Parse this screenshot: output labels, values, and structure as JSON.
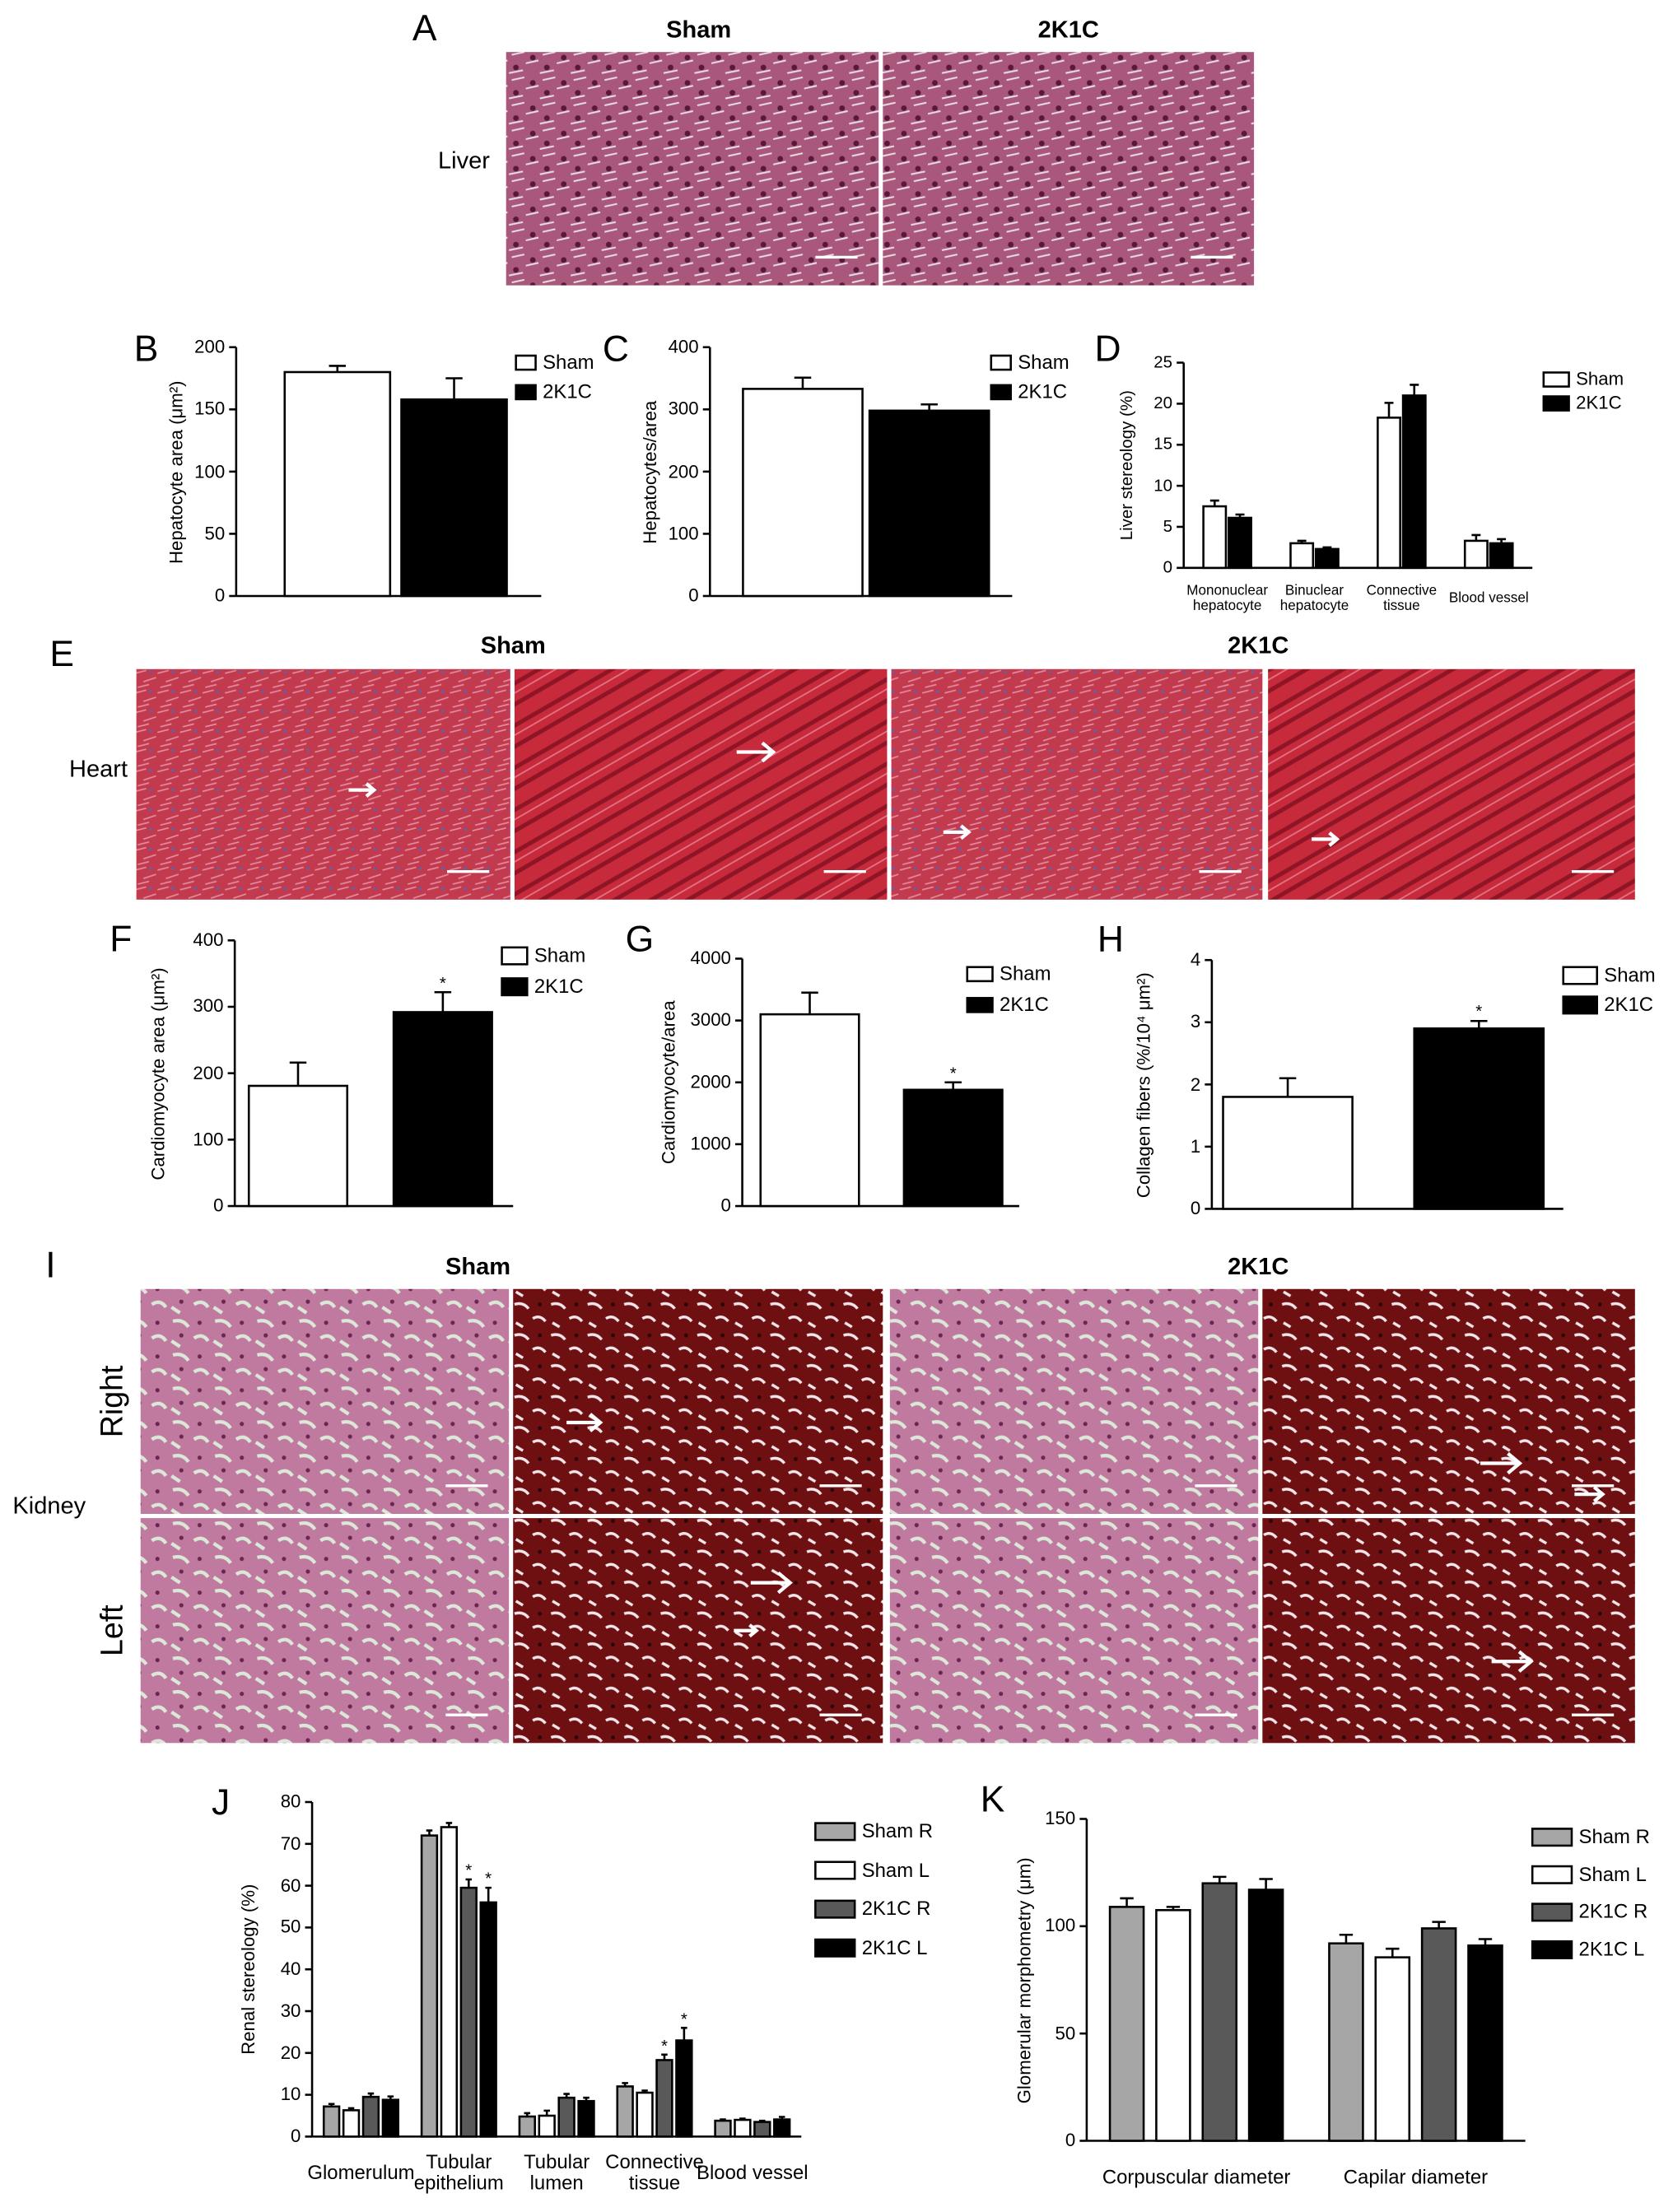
{
  "micrographs": [
    {
      "panel": "A",
      "organ": "Liver",
      "groups": [
        "Sham",
        "2K1C"
      ]
    },
    {
      "panel": "E",
      "organ": "Heart",
      "groups": [
        "Sham",
        "2K1C"
      ]
    },
    {
      "panel": "I",
      "organ": "Kidney",
      "groups": [
        "Sham",
        "2K1C"
      ],
      "rows": [
        "Right",
        "Left"
      ]
    }
  ],
  "chart_data": [
    {
      "type": "bar",
      "panel": "B",
      "y_label": "Hepatocyte area (μm²)",
      "ylim": [
        0,
        200
      ],
      "yticks": [
        0,
        50,
        100,
        150,
        200
      ],
      "series": [
        {
          "name": "Sham",
          "color": "#ffffff",
          "values": [
            180
          ],
          "errors": [
            5
          ]
        },
        {
          "name": "2K1C",
          "color": "#000000",
          "values": [
            158
          ],
          "errors": [
            17
          ]
        }
      ]
    },
    {
      "type": "bar",
      "panel": "C",
      "y_label": "Hepatocytes/area",
      "ylim": [
        0,
        400
      ],
      "yticks": [
        0,
        100,
        200,
        300,
        400
      ],
      "series": [
        {
          "name": "Sham",
          "color": "#ffffff",
          "values": [
            333
          ],
          "errors": [
            18
          ]
        },
        {
          "name": "2K1C",
          "color": "#000000",
          "values": [
            298
          ],
          "errors": [
            10
          ]
        }
      ]
    },
    {
      "type": "bar",
      "panel": "D",
      "y_label": "Liver stereology (%)",
      "ylim": [
        0,
        25
      ],
      "yticks": [
        0,
        5,
        10,
        15,
        20,
        25
      ],
      "categories": [
        "Mononuclear hepatocyte",
        "Binuclear hepatocyte",
        "Connective tissue",
        "Blood vessel"
      ],
      "series": [
        {
          "name": "Sham",
          "color": "#ffffff",
          "values": [
            7.5,
            3,
            18.3,
            3.3
          ],
          "errors": [
            0.7,
            0.3,
            1.8,
            0.7
          ]
        },
        {
          "name": "2K1C",
          "color": "#000000",
          "values": [
            6.1,
            2.3,
            21,
            3
          ],
          "errors": [
            0.4,
            0.2,
            1.3,
            0.5
          ]
        }
      ]
    },
    {
      "type": "bar",
      "panel": "F",
      "y_label": "Cardiomyocyte area (μm²)",
      "ylim": [
        0,
        400
      ],
      "yticks": [
        0,
        100,
        200,
        300,
        400
      ],
      "series": [
        {
          "name": "Sham",
          "color": "#ffffff",
          "values": [
            181
          ],
          "errors": [
            35
          ]
        },
        {
          "name": "2K1C",
          "color": "#000000",
          "values": [
            292
          ],
          "errors": [
            30
          ],
          "significance": [
            "*"
          ]
        }
      ]
    },
    {
      "type": "bar",
      "panel": "G",
      "y_label": "Cardiomyocyte/area",
      "ylim": [
        0,
        4000
      ],
      "yticks": [
        0,
        1000,
        2000,
        3000,
        4000
      ],
      "series": [
        {
          "name": "Sham",
          "color": "#ffffff",
          "values": [
            3100
          ],
          "errors": [
            350
          ]
        },
        {
          "name": "2K1C",
          "color": "#000000",
          "values": [
            1880
          ],
          "errors": [
            120
          ],
          "significance": [
            "*"
          ]
        }
      ]
    },
    {
      "type": "bar",
      "panel": "H",
      "y_label": "Collagen fibers (%/10⁴ μm²)",
      "ylim": [
        0,
        4
      ],
      "yticks": [
        0,
        1,
        2,
        3,
        4
      ],
      "series": [
        {
          "name": "Sham",
          "color": "#ffffff",
          "values": [
            1.8
          ],
          "errors": [
            0.3
          ]
        },
        {
          "name": "2K1C",
          "color": "#000000",
          "values": [
            2.9
          ],
          "errors": [
            0.12
          ],
          "significance": [
            "*"
          ]
        }
      ]
    },
    {
      "type": "bar",
      "panel": "J",
      "y_label": "Renal stereology (%)",
      "ylim": [
        0,
        80
      ],
      "yticks": [
        0,
        10,
        20,
        30,
        40,
        50,
        60,
        70,
        80
      ],
      "categories": [
        "Glomerulum",
        "Tubular epithelium",
        "Tubular lumen",
        "Connective tissue",
        "Blood vessel"
      ],
      "series": [
        {
          "name": "Sham R",
          "color": "#a6a6a6",
          "values": [
            7.2,
            72,
            4.8,
            12,
            3.8
          ],
          "errors": [
            0.6,
            1.2,
            0.8,
            0.8,
            0.3
          ]
        },
        {
          "name": "Sham L",
          "color": "#ffffff",
          "values": [
            6.3,
            74,
            5,
            10.5,
            4
          ],
          "errors": [
            0.5,
            1,
            1.2,
            0.5,
            0.3
          ]
        },
        {
          "name": "2K1C R",
          "color": "#595959",
          "values": [
            9.5,
            59.5,
            9.3,
            18.3,
            3.5
          ],
          "errors": [
            0.8,
            2,
            0.9,
            1.3,
            0.3
          ],
          "significance": [
            null,
            "*",
            null,
            "*",
            null
          ]
        },
        {
          "name": "2K1C L",
          "color": "#000000",
          "values": [
            8.8,
            56,
            8.5,
            23,
            4.1
          ],
          "errors": [
            0.8,
            3.5,
            0.8,
            3,
            0.6
          ],
          "significance": [
            null,
            "*",
            null,
            "*",
            null
          ]
        }
      ]
    },
    {
      "type": "bar",
      "panel": "K",
      "y_label": "Glomerular morphometry (μm)",
      "ylim": [
        0,
        150
      ],
      "yticks": [
        0,
        50,
        100,
        150
      ],
      "categories": [
        "Corpuscular diameter",
        "Capilar diameter"
      ],
      "series": [
        {
          "name": "Sham R",
          "color": "#a6a6a6",
          "values": [
            109,
            92
          ],
          "errors": [
            4,
            4
          ]
        },
        {
          "name": "Sham L",
          "color": "#ffffff",
          "values": [
            107.5,
            85.5
          ],
          "errors": [
            1.5,
            4
          ]
        },
        {
          "name": "2K1C R",
          "color": "#595959",
          "values": [
            120,
            99
          ],
          "errors": [
            3,
            3
          ]
        },
        {
          "name": "2K1C L",
          "color": "#000000",
          "values": [
            117,
            91
          ],
          "errors": [
            5,
            3
          ]
        }
      ]
    }
  ]
}
